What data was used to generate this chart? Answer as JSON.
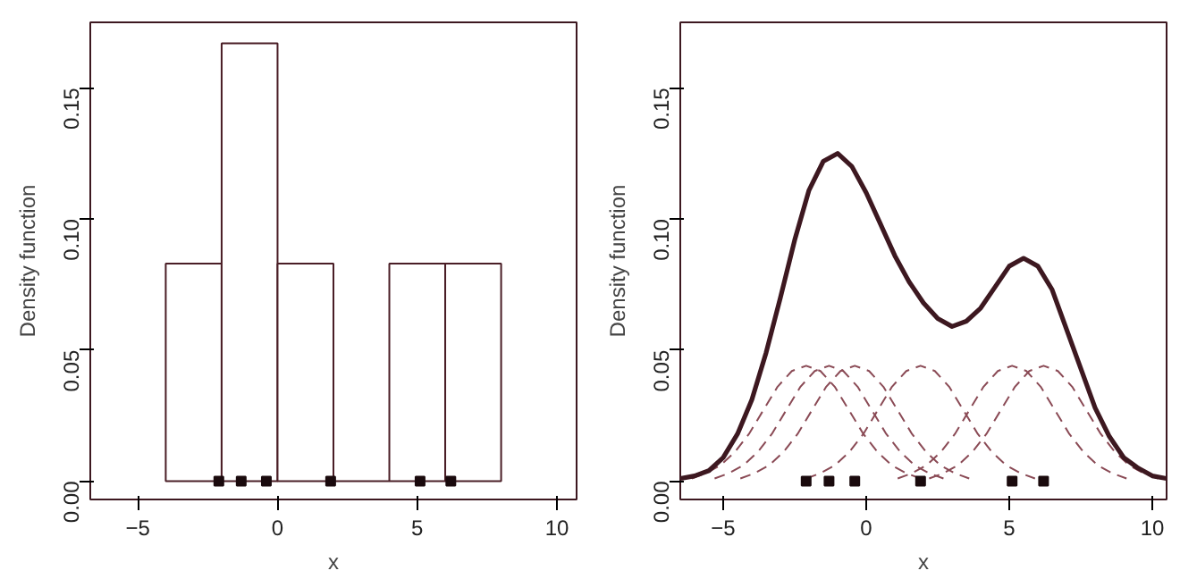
{
  "chart_data": [
    {
      "type": "histogram",
      "xlabel": "x",
      "ylabel": "Density function",
      "bins": [
        -4,
        -2,
        0,
        2,
        4,
        6,
        8
      ],
      "values": [
        0.083,
        0.167,
        0.083,
        0,
        0.083,
        0.083
      ],
      "color": "#4a1e26",
      "xlim": [
        -6.7,
        10.7
      ],
      "ylim": [
        -0.007,
        0.175
      ],
      "xticks": [
        -5,
        0,
        5,
        10
      ],
      "yticks": [
        {
          "value": 0,
          "label": "0.00"
        },
        {
          "value": 0.05,
          "label": "0.05"
        },
        {
          "value": 0.1,
          "label": "0.10"
        },
        {
          "value": 0.15,
          "label": "0.15"
        }
      ],
      "grid": false,
      "series": [
        {
          "type": "scatter",
          "color": "#1a0a0d",
          "x": [
            -2.1,
            -1.3,
            -0.4,
            1.9,
            5.1,
            6.2
          ],
          "values": [
            0,
            0,
            0,
            0,
            0,
            0
          ]
        }
      ]
    },
    {
      "type": "line",
      "xlabel": "x",
      "ylabel": "Density function",
      "xlim": [
        -6.5,
        10.5
      ],
      "ylim": [
        -0.007,
        0.175
      ],
      "xticks": [
        -5,
        0,
        5,
        10
      ],
      "yticks": [
        {
          "value": 0,
          "label": "0.00"
        },
        {
          "value": 0.05,
          "label": "0.05"
        },
        {
          "value": 0.1,
          "label": "0.10"
        },
        {
          "value": 0.15,
          "label": "0.15"
        }
      ],
      "grid": false,
      "series": [
        {
          "type": "line",
          "line_style": "dashed",
          "color": "#8a4a55",
          "x": [
            -6.1,
            -5.6,
            -5.1,
            -4.6,
            -4.1,
            -3.6,
            -3.1,
            -2.6,
            -2.1,
            -1.6,
            -1.1,
            -0.6,
            -0.1,
            0.4,
            0.9,
            1.4,
            1.9
          ],
          "values": [
            0.001,
            0.003,
            0.006,
            0.011,
            0.018,
            0.027,
            0.036,
            0.042,
            0.044,
            0.042,
            0.036,
            0.027,
            0.018,
            0.011,
            0.006,
            0.003,
            0.001
          ]
        },
        {
          "type": "line",
          "line_style": "dashed",
          "color": "#8a4a55",
          "x": [
            -5.3,
            -4.8,
            -4.3,
            -3.8,
            -3.3,
            -2.8,
            -2.3,
            -1.8,
            -1.3,
            -0.8,
            -0.3,
            0.2,
            0.7,
            1.2,
            1.7,
            2.2,
            2.7
          ],
          "values": [
            0.001,
            0.003,
            0.006,
            0.011,
            0.018,
            0.027,
            0.036,
            0.042,
            0.044,
            0.042,
            0.036,
            0.027,
            0.018,
            0.011,
            0.006,
            0.003,
            0.001
          ]
        },
        {
          "type": "line",
          "line_style": "dashed",
          "color": "#8a4a55",
          "x": [
            -4.4,
            -3.9,
            -3.4,
            -2.9,
            -2.4,
            -1.9,
            -1.4,
            -0.9,
            -0.4,
            0.1,
            0.6,
            1.1,
            1.6,
            2.1,
            2.6,
            3.1,
            3.6
          ],
          "values": [
            0.001,
            0.003,
            0.006,
            0.011,
            0.018,
            0.027,
            0.036,
            0.042,
            0.044,
            0.042,
            0.036,
            0.027,
            0.018,
            0.011,
            0.006,
            0.003,
            0.001
          ]
        },
        {
          "type": "line",
          "line_style": "dashed",
          "color": "#8a4a55",
          "x": [
            -2.1,
            -1.6,
            -1.1,
            -0.6,
            -0.1,
            0.4,
            0.9,
            1.4,
            1.9,
            2.4,
            2.9,
            3.4,
            3.9,
            4.4,
            4.9,
            5.4,
            5.9
          ],
          "values": [
            0.001,
            0.003,
            0.006,
            0.011,
            0.018,
            0.027,
            0.036,
            0.042,
            0.044,
            0.042,
            0.036,
            0.027,
            0.018,
            0.011,
            0.006,
            0.003,
            0.001
          ]
        },
        {
          "type": "line",
          "line_style": "dashed",
          "color": "#8a4a55",
          "x": [
            1.1,
            1.6,
            2.1,
            2.6,
            3.1,
            3.6,
            4.1,
            4.6,
            5.1,
            5.6,
            6.1,
            6.6,
            7.1,
            7.6,
            8.1,
            8.6,
            9.1
          ],
          "values": [
            0.001,
            0.003,
            0.006,
            0.011,
            0.018,
            0.027,
            0.036,
            0.042,
            0.044,
            0.042,
            0.036,
            0.027,
            0.018,
            0.011,
            0.006,
            0.003,
            0.001
          ]
        },
        {
          "type": "line",
          "line_style": "dashed",
          "color": "#8a4a55",
          "x": [
            2.2,
            2.7,
            3.2,
            3.7,
            4.2,
            4.7,
            5.2,
            5.7,
            6.2,
            6.7,
            7.2,
            7.7,
            8.2,
            8.7,
            9.2,
            9.7,
            10.2
          ],
          "values": [
            0.001,
            0.003,
            0.006,
            0.011,
            0.018,
            0.027,
            0.036,
            0.042,
            0.044,
            0.042,
            0.036,
            0.027,
            0.018,
            0.011,
            0.006,
            0.003,
            0.001
          ]
        },
        {
          "type": "line",
          "line_style": "solid",
          "color": "#3d1820",
          "x": [
            -6.5,
            -6,
            -5.5,
            -5,
            -4.5,
            -4,
            -3.5,
            -3,
            -2.5,
            -2,
            -1.5,
            -1,
            -0.5,
            0,
            0.5,
            1,
            1.5,
            2,
            2.5,
            3,
            3.5,
            4,
            4.5,
            5,
            5.5,
            6,
            6.5,
            7,
            7.5,
            8,
            8.5,
            9,
            9.5,
            10,
            10.5
          ],
          "values": [
            0.001,
            0.002,
            0.004,
            0.009,
            0.018,
            0.031,
            0.049,
            0.07,
            0.092,
            0.111,
            0.122,
            0.125,
            0.12,
            0.11,
            0.098,
            0.086,
            0.076,
            0.068,
            0.062,
            0.059,
            0.061,
            0.066,
            0.074,
            0.082,
            0.085,
            0.082,
            0.073,
            0.058,
            0.043,
            0.028,
            0.017,
            0.009,
            0.005,
            0.002,
            0.001
          ]
        },
        {
          "type": "scatter",
          "color": "#1a0a0d",
          "x": [
            -2.1,
            -1.3,
            -0.4,
            1.9,
            5.1,
            6.2
          ],
          "values": [
            0,
            0,
            0,
            0,
            0,
            0
          ]
        }
      ]
    }
  ]
}
